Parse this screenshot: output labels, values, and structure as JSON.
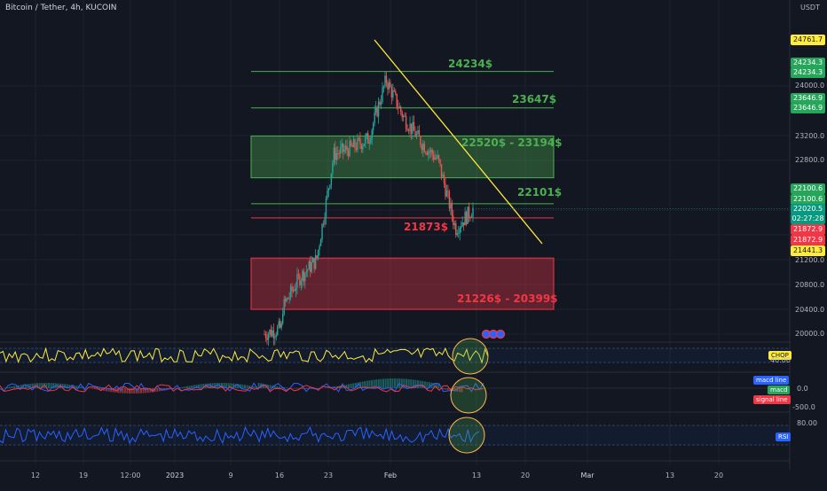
{
  "header": {
    "title": "Bitcoin / Tether, 4h, KUCOIN",
    "unit": "USDT"
  },
  "price_axis": {
    "ticks": [
      "24000.0",
      "23200.0",
      "22800.0",
      "21200.0",
      "20800.0",
      "20400.0",
      "20000.0"
    ]
  },
  "price_tags": [
    {
      "label": "24761.7",
      "bg": "#ffeb3b",
      "fg": "#131722"
    },
    {
      "label": "24234.3",
      "bg": "#26a65b",
      "fg": "#ffffff"
    },
    {
      "label": "24234.3",
      "bg": "#26a65b",
      "fg": "#ffffff"
    },
    {
      "label": "23646.9",
      "bg": "#26a65b",
      "fg": "#ffffff"
    },
    {
      "label": "23646.9",
      "bg": "#26a65b",
      "fg": "#ffffff"
    },
    {
      "label": "22100.6",
      "bg": "#26a65b",
      "fg": "#ffffff"
    },
    {
      "label": "22100.6",
      "bg": "#26a65b",
      "fg": "#ffffff"
    },
    {
      "label": "22020.5",
      "bg": "#089981",
      "fg": "#ffffff"
    },
    {
      "label": "02:27:28",
      "bg": "#089981",
      "fg": "#ffffff"
    },
    {
      "label": "21872.9",
      "bg": "#f23645",
      "fg": "#ffffff"
    },
    {
      "label": "21872.9",
      "bg": "#f23645",
      "fg": "#ffffff"
    },
    {
      "label": "21441.3",
      "bg": "#ffeb3b",
      "fg": "#131722"
    }
  ],
  "zone_labels": {
    "l24234": "24234$",
    "l23647": "23647$",
    "supply_zone": "22520$ - 23194$",
    "l22101": "22101$",
    "l21873": "21873$",
    "demand_zone": "21226$ - 20399$"
  },
  "indicators": {
    "chop": {
      "tag": "CHOP",
      "level": "40.00"
    },
    "macd": {
      "macd_line": "macd line",
      "macd": "macd",
      "signal_line": "signal line",
      "level": "0.0",
      "level2": "-500.0"
    },
    "rsi": {
      "tag": "RSI",
      "level": "80.00"
    }
  },
  "x_axis": {
    "labels": [
      "12",
      "19",
      "12:00",
      "2023",
      "9",
      "16",
      "23",
      "Feb",
      "13",
      "20",
      "Mar",
      "13",
      "20"
    ]
  },
  "colors": {
    "background": "#131722",
    "green": "#4caf50",
    "red": "#f23645",
    "trendline": "#ffeb3b",
    "chop": "#ffeb3b",
    "rsi": "#2962ff",
    "macd": "#2962ff",
    "signal": "#f23645"
  },
  "chart_data": {
    "type": "candlestick",
    "symbol": "Bitcoin / Tether, 4h, KUCOIN",
    "currency": "USDT",
    "last_price": 22020.5,
    "countdown": "02:27:28",
    "horizontal_levels": [
      24234,
      23647,
      22101,
      21873
    ],
    "zones": [
      {
        "name": "22520$ - 23194$",
        "low": 22520,
        "high": 23194,
        "color": "green"
      },
      {
        "name": "21226$ - 20399$",
        "low": 20399,
        "high": 21226,
        "color": "red"
      }
    ],
    "trendline": {
      "from": 24761.7,
      "to": 21441.3,
      "color": "yellow"
    },
    "y_ticks": [
      20000,
      20400,
      20800,
      21200,
      22800,
      23200,
      24000
    ],
    "x_ticks": [
      "12",
      "19",
      "12:00",
      "2023",
      "9",
      "16",
      "23",
      "Feb",
      "13",
      "20",
      "Mar",
      "13",
      "20"
    ],
    "price_path": [
      [
        20000,
        20100
      ],
      [
        20400,
        20900
      ],
      [
        20900,
        21200
      ],
      [
        21200,
        22900
      ],
      [
        22900,
        23000
      ],
      [
        23000,
        23150
      ],
      [
        23150,
        24100
      ],
      [
        24100,
        23500
      ],
      [
        23500,
        23100
      ],
      [
        23100,
        22800
      ],
      [
        22800,
        21700
      ],
      [
        21700,
        22020
      ]
    ]
  }
}
